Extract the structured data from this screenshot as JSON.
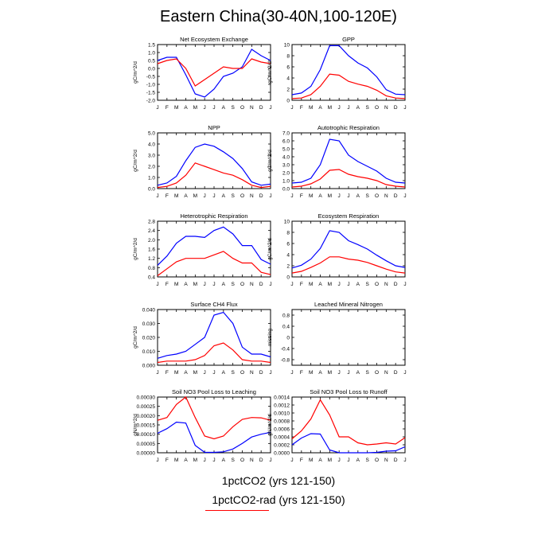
{
  "title": "Eastern China(30-40N,100-120E)",
  "legend": {
    "line1": "1pctCO2 (yrs 121-150)",
    "line2": "1pctCO2-rad (yrs 121-150)",
    "line2_color": "#ff0000"
  },
  "colors": {
    "series_1pctCO2": "#0000ff",
    "series_1pctCO2_rad": "#ff0000"
  },
  "chart_data": [
    {
      "type": "line",
      "title": "Net Ecosystem Exchange",
      "ylabel": "gC/m^2/d",
      "categories": [
        "J",
        "F",
        "M",
        "A",
        "M",
        "J",
        "J",
        "A",
        "S",
        "O",
        "N",
        "D",
        "J"
      ],
      "ylim": [
        -2.0,
        1.5
      ],
      "yticks": [
        -2.0,
        -1.5,
        -1.0,
        -0.5,
        0.0,
        0.5,
        1.0,
        1.5
      ],
      "ytick_labels": [
        "-2.0",
        "-1.5",
        "-1.0",
        "-0.5",
        "0.0",
        "0.5",
        "1.0",
        "1.5"
      ],
      "series": [
        {
          "color": "#0000ff",
          "values": [
            0.5,
            0.7,
            0.7,
            -0.4,
            -1.6,
            -1.8,
            -1.3,
            -0.5,
            -0.3,
            0.1,
            1.2,
            0.8,
            0.5
          ]
        },
        {
          "color": "#ff0000",
          "values": [
            0.3,
            0.5,
            0.6,
            0.0,
            -1.1,
            -0.7,
            -0.3,
            0.1,
            0.0,
            0.0,
            0.6,
            0.4,
            0.3
          ]
        }
      ]
    },
    {
      "type": "line",
      "title": "GPP",
      "ylabel": "gC/m^2/d",
      "categories": [
        "J",
        "F",
        "M",
        "A",
        "M",
        "J",
        "J",
        "A",
        "S",
        "O",
        "N",
        "D",
        "J"
      ],
      "ylim": [
        0,
        10
      ],
      "yticks": [
        0,
        2,
        4,
        6,
        8,
        10
      ],
      "ytick_labels": [
        "0",
        "2",
        "4",
        "6",
        "8",
        "10"
      ],
      "series": [
        {
          "color": "#0000ff",
          "values": [
            1.0,
            1.3,
            2.5,
            5.5,
            9.8,
            9.8,
            8.0,
            6.7,
            5.8,
            4.2,
            1.9,
            1.1,
            1.0
          ]
        },
        {
          "color": "#ff0000",
          "values": [
            0.3,
            0.4,
            1.0,
            2.5,
            4.7,
            4.5,
            3.4,
            2.9,
            2.5,
            1.8,
            0.8,
            0.4,
            0.3
          ]
        }
      ]
    },
    {
      "type": "line",
      "title": "NPP",
      "ylabel": "gC/m^2/d",
      "categories": [
        "J",
        "F",
        "M",
        "A",
        "M",
        "J",
        "J",
        "A",
        "S",
        "O",
        "N",
        "D",
        "J"
      ],
      "ylim": [
        0,
        5
      ],
      "yticks": [
        0,
        1,
        2,
        3,
        4,
        5
      ],
      "ytick_labels": [
        "0.0",
        "1.0",
        "2.0",
        "3.0",
        "4.0",
        "5.0"
      ],
      "series": [
        {
          "color": "#0000ff",
          "values": [
            0.3,
            0.5,
            1.1,
            2.5,
            3.7,
            4.0,
            3.8,
            3.3,
            2.7,
            1.8,
            0.6,
            0.3,
            0.4
          ]
        },
        {
          "color": "#ff0000",
          "values": [
            0.1,
            0.2,
            0.5,
            1.2,
            2.3,
            2.0,
            1.7,
            1.4,
            1.2,
            0.8,
            0.3,
            0.1,
            0.2
          ]
        }
      ]
    },
    {
      "type": "line",
      "title": "Autotrophic Respiration",
      "ylabel": "gC/m^2/d",
      "categories": [
        "J",
        "F",
        "M",
        "A",
        "M",
        "J",
        "J",
        "A",
        "S",
        "O",
        "N",
        "D",
        "J"
      ],
      "ylim": [
        0,
        7
      ],
      "yticks": [
        0,
        1,
        2,
        3,
        4,
        5,
        6,
        7
      ],
      "ytick_labels": [
        "0.0",
        "1.0",
        "2.0",
        "3.0",
        "4.0",
        "5.0",
        "6.0",
        "7.0"
      ],
      "series": [
        {
          "color": "#0000ff",
          "values": [
            0.7,
            0.8,
            1.3,
            3.0,
            6.2,
            6.0,
            4.2,
            3.4,
            2.8,
            2.2,
            1.3,
            0.8,
            0.7
          ]
        },
        {
          "color": "#ff0000",
          "values": [
            0.2,
            0.3,
            0.6,
            1.2,
            2.3,
            2.4,
            1.8,
            1.5,
            1.3,
            1.0,
            0.5,
            0.3,
            0.2
          ]
        }
      ]
    },
    {
      "type": "line",
      "title": "Heterotrophic Respiration",
      "ylabel": "gC/m^2/d",
      "categories": [
        "J",
        "F",
        "M",
        "A",
        "M",
        "J",
        "J",
        "A",
        "S",
        "O",
        "N",
        "D",
        "J"
      ],
      "ylim": [
        0.4,
        2.8
      ],
      "yticks": [
        0.4,
        0.8,
        1.2,
        1.6,
        2.0,
        2.4,
        2.8
      ],
      "ytick_labels": [
        "0.4",
        "0.8",
        "1.2",
        "1.6",
        "2.0",
        "2.4",
        "2.8"
      ],
      "series": [
        {
          "color": "#0000ff",
          "values": [
            0.9,
            1.3,
            1.85,
            2.15,
            2.15,
            2.1,
            2.4,
            2.55,
            2.25,
            1.75,
            1.75,
            1.15,
            0.95
          ]
        },
        {
          "color": "#ff0000",
          "values": [
            0.45,
            0.75,
            1.05,
            1.2,
            1.2,
            1.2,
            1.35,
            1.5,
            1.2,
            1.0,
            1.0,
            0.6,
            0.5
          ]
        }
      ]
    },
    {
      "type": "line",
      "title": "Ecosystem Respiration",
      "ylabel": "gC/m^2/d",
      "categories": [
        "J",
        "F",
        "M",
        "A",
        "M",
        "J",
        "J",
        "A",
        "S",
        "O",
        "N",
        "D",
        "J"
      ],
      "ylim": [
        0,
        10
      ],
      "yticks": [
        0,
        2,
        4,
        6,
        8,
        10
      ],
      "ytick_labels": [
        "0",
        "2",
        "4",
        "6",
        "8",
        "10"
      ],
      "series": [
        {
          "color": "#0000ff",
          "values": [
            1.6,
            2.1,
            3.2,
            5.1,
            8.3,
            8.0,
            6.5,
            5.8,
            5.0,
            3.9,
            2.9,
            2.0,
            1.7
          ]
        },
        {
          "color": "#ff0000",
          "values": [
            0.7,
            1.0,
            1.7,
            2.5,
            3.6,
            3.6,
            3.2,
            3.0,
            2.6,
            2.0,
            1.4,
            0.9,
            0.7
          ]
        }
      ]
    },
    {
      "type": "line",
      "title": "Surface CH4 Flux",
      "ylabel": "gC/m^2/d",
      "categories": [
        "J",
        "F",
        "M",
        "A",
        "M",
        "J",
        "J",
        "A",
        "S",
        "O",
        "N",
        "D",
        "J"
      ],
      "ylim": [
        0,
        0.04
      ],
      "yticks": [
        0,
        0.01,
        0.02,
        0.03,
        0.04
      ],
      "ytick_labels": [
        "0.000",
        "0.010",
        "0.020",
        "0.030",
        "0.040"
      ],
      "series": [
        {
          "color": "#0000ff",
          "values": [
            0.005,
            0.007,
            0.008,
            0.01,
            0.015,
            0.02,
            0.036,
            0.038,
            0.03,
            0.013,
            0.008,
            0.008,
            0.006
          ]
        },
        {
          "color": "#ff0000",
          "values": [
            0.002,
            0.003,
            0.003,
            0.003,
            0.004,
            0.007,
            0.014,
            0.016,
            0.011,
            0.004,
            0.003,
            0.003,
            0.002
          ]
        }
      ]
    },
    {
      "type": "line",
      "title": "Leached Mineral Nitrogen",
      "ylabel": "missing",
      "categories": [
        "J",
        "F",
        "M",
        "A",
        "M",
        "J",
        "J",
        "A",
        "S",
        "O",
        "N",
        "D",
        "J"
      ],
      "ylim": [
        -1.0,
        1.0
      ],
      "yticks": [
        -0.8,
        -0.4,
        0.0,
        0.4,
        0.8
      ],
      "ytick_labels": [
        "-0.8",
        "-0.4",
        "0",
        "0.4",
        "0.8"
      ],
      "series": []
    },
    {
      "type": "line",
      "title": "Soil NO3 Pool Loss to Leaching",
      "ylabel": "gN/m^2/d",
      "categories": [
        "J",
        "F",
        "M",
        "A",
        "M",
        "J",
        "J",
        "A",
        "S",
        "O",
        "N",
        "D",
        "J"
      ],
      "ylim": [
        0,
        0.0003
      ],
      "yticks": [
        0,
        5e-05,
        0.0001,
        0.00015,
        0.0002,
        0.00025,
        0.0003
      ],
      "ytick_labels": [
        "0.00000",
        "0.00005",
        "0.00010",
        "0.00015",
        "0.00020",
        "0.00025",
        "0.00030"
      ],
      "series": [
        {
          "color": "#0000ff",
          "values": [
            0.000105,
            0.00013,
            0.000165,
            0.00016,
            4e-05,
            2e-06,
            2e-06,
            5e-06,
            2e-05,
            5e-05,
            8.5e-05,
            0.0001,
            0.00011
          ]
        },
        {
          "color": "#ff0000",
          "values": [
            0.000175,
            0.00019,
            0.00026,
            0.0003,
            0.00019,
            9e-05,
            7.5e-05,
            9e-05,
            0.00014,
            0.00018,
            0.00019,
            0.000188,
            0.000175
          ]
        }
      ]
    },
    {
      "type": "line",
      "title": "Soil NO3 Pool Loss to Runoff",
      "ylabel": "gN/m^2/d",
      "categories": [
        "J",
        "F",
        "M",
        "A",
        "M",
        "J",
        "J",
        "A",
        "S",
        "O",
        "N",
        "D",
        "J"
      ],
      "ylim": [
        0,
        0.0014
      ],
      "yticks": [
        0,
        0.0002,
        0.0004,
        0.0006,
        0.0008,
        0.001,
        0.0012,
        0.0014
      ],
      "ytick_labels": [
        "0.0000",
        "0.0002",
        "0.0004",
        "0.0006",
        "0.0008",
        "0.0010",
        "0.0012",
        "0.0014"
      ],
      "series": [
        {
          "color": "#0000ff",
          "values": [
            0.0002,
            0.00037,
            0.00048,
            0.00047,
            7e-05,
            0.0,
            0.0,
            0.0,
            0.0,
            1e-05,
            4e-05,
            5e-05,
            0.00015
          ]
        },
        {
          "color": "#ff0000",
          "values": [
            0.00035,
            0.00055,
            0.00085,
            0.00133,
            0.00095,
            0.0004,
            0.0004,
            0.00025,
            0.0002,
            0.00022,
            0.00025,
            0.00022,
            0.00038
          ]
        }
      ]
    }
  ]
}
